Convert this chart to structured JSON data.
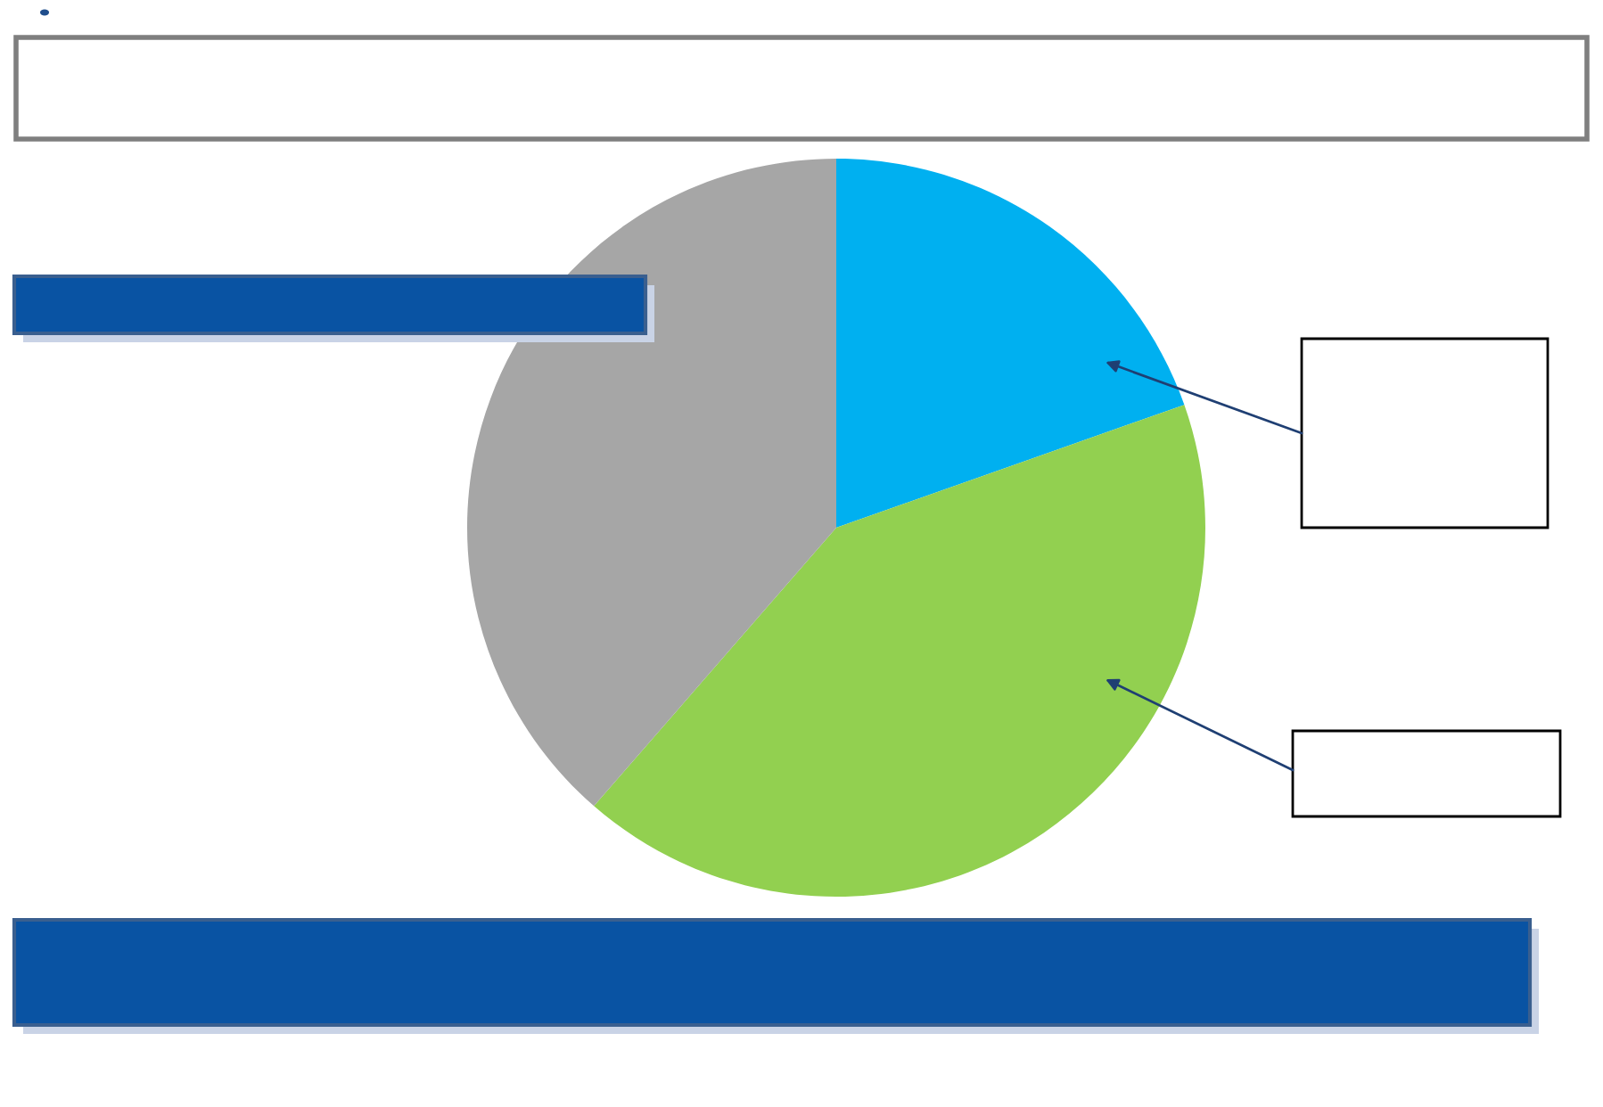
{
  "chart_data": {
    "type": "pie",
    "categories": [
      null,
      null,
      null
    ],
    "values": [
      19.6,
      41.8,
      38.6
    ],
    "colors": [
      "#00b0f0",
      "#92d050",
      "#a6a6a6"
    ]
  }
}
